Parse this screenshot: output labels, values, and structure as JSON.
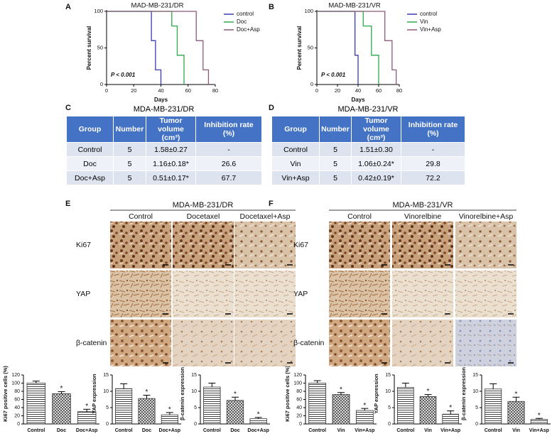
{
  "panel_labels": [
    "A",
    "B",
    "C",
    "D",
    "E",
    "F"
  ],
  "chart_data": [
    {
      "type": "step",
      "title": "MAD-MB-231/DR",
      "x_label": "Days",
      "y_label": "Percent survival",
      "annotation": "P < 0.001",
      "xlim": [
        0,
        80
      ],
      "ylim": [
        0,
        100
      ],
      "xticks": [
        0,
        20,
        40,
        60,
        80
      ],
      "yticks": [
        0,
        50,
        100
      ],
      "series": [
        {
          "name": "control",
          "color": "#3b3bb5",
          "x": [
            0,
            33,
            36,
            40
          ],
          "values": [
            100,
            60,
            20,
            0
          ]
        },
        {
          "name": "Doc",
          "color": "#2eaa4a",
          "x": [
            0,
            48,
            52,
            57
          ],
          "values": [
            100,
            80,
            40,
            0
          ]
        },
        {
          "name": "Doc+Asp",
          "color": "#8c5a78",
          "x": [
            0,
            66,
            71,
            75
          ],
          "values": [
            100,
            60,
            20,
            0
          ]
        }
      ]
    },
    {
      "type": "step",
      "title": "MAD-MB-231/VR",
      "x_label": "Days",
      "y_label": "Percent survival",
      "annotation": "P < 0.001",
      "xlim": [
        0,
        80
      ],
      "ylim": [
        0,
        100
      ],
      "xticks": [
        0,
        20,
        40,
        60,
        80
      ],
      "yticks": [
        0,
        50,
        100
      ],
      "series": [
        {
          "name": "control",
          "color": "#3b3bb5",
          "x": [
            0,
            37,
            40
          ],
          "values": [
            100,
            40,
            0
          ]
        },
        {
          "name": "Vin",
          "color": "#2eaa4a",
          "x": [
            0,
            45,
            53,
            60
          ],
          "values": [
            100,
            80,
            40,
            0
          ]
        },
        {
          "name": "Vin+Asp",
          "color": "#8c5a78",
          "x": [
            0,
            66,
            73,
            77
          ],
          "values": [
            100,
            60,
            20,
            0
          ]
        }
      ]
    },
    {
      "type": "bar",
      "y_label": "Ki67 positive cells (%)",
      "categories": [
        "Control",
        "Doc",
        "Doc+Asp"
      ],
      "values": [
        100,
        74,
        30
      ],
      "errors": [
        5,
        5,
        6
      ],
      "significance": [
        null,
        "*",
        "*"
      ],
      "ylim": [
        0,
        120
      ],
      "yticks": [
        0,
        20,
        40,
        60,
        80,
        100,
        120
      ]
    },
    {
      "type": "bar",
      "y_label": "YAP expression",
      "categories": [
        "Control",
        "Doc",
        "Doc+Asp"
      ],
      "values": [
        10.8,
        7.8,
        2.8
      ],
      "errors": [
        1.5,
        1.0,
        0.7
      ],
      "significance": [
        null,
        "*",
        "*"
      ],
      "ylim": [
        0,
        15
      ],
      "yticks": [
        0,
        5,
        10,
        15
      ]
    },
    {
      "type": "bar",
      "y_label": "β-catenin expression",
      "categories": [
        "Control",
        "Doc",
        "Doc+Asp"
      ],
      "values": [
        11.3,
        7.2,
        1.6
      ],
      "errors": [
        1.2,
        1.0,
        0.4
      ],
      "significance": [
        null,
        "*",
        "*"
      ],
      "ylim": [
        0,
        15
      ],
      "yticks": [
        0,
        5,
        10,
        15
      ]
    },
    {
      "type": "bar",
      "y_label": "Ki67 positive cells (%)",
      "categories": [
        "Control",
        "Vin",
        "Vin+Asp"
      ],
      "values": [
        100,
        72,
        33
      ],
      "errors": [
        6,
        5,
        5
      ],
      "significance": [
        null,
        "*",
        "*"
      ],
      "ylim": [
        0,
        120
      ],
      "yticks": [
        0,
        20,
        40,
        60,
        80,
        100,
        120
      ]
    },
    {
      "type": "bar",
      "y_label": "YAP expression",
      "categories": [
        "Control",
        "Vin",
        "Vin+Asp"
      ],
      "values": [
        11.2,
        8.4,
        3.0
      ],
      "errors": [
        1.3,
        0.6,
        1.0
      ],
      "significance": [
        null,
        "*",
        "*"
      ],
      "ylim": [
        0,
        15
      ],
      "yticks": [
        0,
        5,
        10,
        15
      ]
    },
    {
      "type": "bar",
      "y_label": "β-catenin expression",
      "categories": [
        "Control",
        "Vin",
        "Vin+Asp"
      ],
      "values": [
        10.7,
        6.9,
        1.4
      ],
      "errors": [
        1.6,
        1.3,
        0.3
      ],
      "significance": [
        null,
        "*",
        "*"
      ],
      "ylim": [
        0,
        15
      ],
      "yticks": [
        0,
        5,
        10,
        15
      ]
    }
  ],
  "tables": [
    {
      "title": "MDA-MB-231/DR",
      "columns": [
        "Group",
        "Number",
        "Tumor volume (cm³)",
        "Inhibition rate (%)"
      ],
      "rows": [
        [
          "Control",
          5,
          "1.58±0.27",
          "-"
        ],
        [
          "Doc",
          5,
          "1.16±0.18*",
          26.6
        ],
        [
          "Doc+Asp",
          5,
          "0.51±0.17*",
          67.7
        ]
      ]
    },
    {
      "title": "MDA-MB-231/VR",
      "columns": [
        "Group",
        "Number",
        "Tumor volume (cm³)",
        "Inhibition rate (%)"
      ],
      "rows": [
        [
          "Control",
          5,
          "1.51±0.30",
          "-"
        ],
        [
          "Vin",
          5,
          "1.06±0.24*",
          29.8
        ],
        [
          "Vin+Asp",
          5,
          "0.42±0.19*",
          72.2
        ]
      ]
    }
  ],
  "ihc": [
    {
      "title": "MDA-MB-231/DR",
      "columns": [
        "Control",
        "Docetaxel",
        "Docetaxel+Asp"
      ],
      "rows": [
        "Ki67",
        "YAP",
        "β-catenin"
      ]
    },
    {
      "title": "MDA-MB-231/VR",
      "columns": [
        "Control",
        "Vinorelbine",
        "Vinorelbine+Asp"
      ],
      "rows": [
        "Ki67",
        "YAP",
        "β-catenin"
      ]
    }
  ]
}
